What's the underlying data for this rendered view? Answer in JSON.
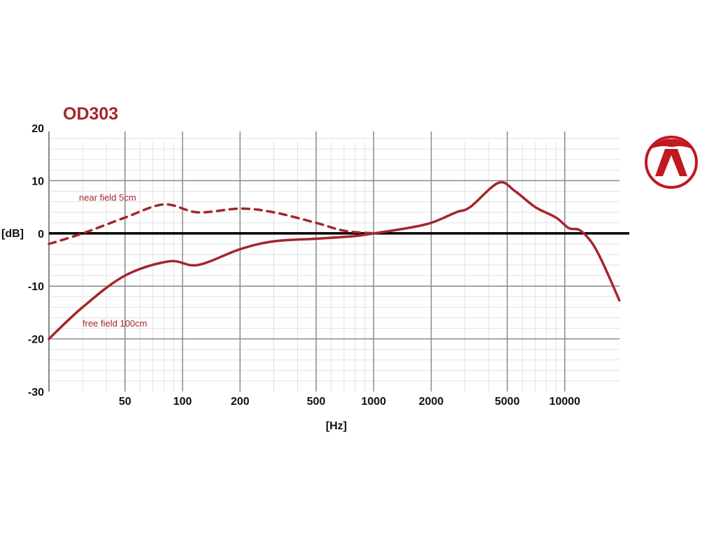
{
  "chart_data": {
    "type": "line",
    "title": "OD303",
    "xlabel": "[Hz]",
    "ylabel": "[dB]",
    "xscale": "log",
    "xlim": [
      20,
      20000
    ],
    "ylim": [
      -30,
      20
    ],
    "x_ticks": [
      50,
      100,
      200,
      500,
      1000,
      2000,
      5000,
      10000
    ],
    "x_tick_labels": [
      "50",
      "100",
      "200",
      "500",
      "1000",
      "2000",
      "5000",
      "10000"
    ],
    "y_ticks": [
      20,
      10,
      0,
      -10,
      -20,
      -30
    ],
    "y_tick_labels": [
      "20",
      "10",
      "0",
      "-10",
      "-20",
      "-30"
    ],
    "grid": true,
    "color": "#a4262c",
    "series": [
      {
        "name": "near field 5cm",
        "style": "dashed",
        "x": [
          20,
          30,
          50,
          80,
          120,
          200,
          300,
          500,
          700,
          1000
        ],
        "y": [
          -2,
          0,
          3,
          5.5,
          4,
          4.7,
          4,
          2,
          0.5,
          0
        ]
      },
      {
        "name": "free field 100cm",
        "style": "solid",
        "x": [
          20,
          30,
          50,
          85,
          120,
          200,
          300,
          500,
          800,
          1000,
          1500,
          2000,
          2700,
          3200,
          4500,
          5500,
          7000,
          9000,
          10500,
          12000,
          14000,
          16000,
          19300
        ],
        "y": [
          -20,
          -14,
          -8,
          -5.3,
          -6,
          -3,
          -1.5,
          -1,
          -0.5,
          0,
          1,
          2,
          4,
          5,
          9.6,
          8,
          5,
          3,
          1,
          0.6,
          -2,
          -6,
          -12.7
        ]
      }
    ]
  }
}
